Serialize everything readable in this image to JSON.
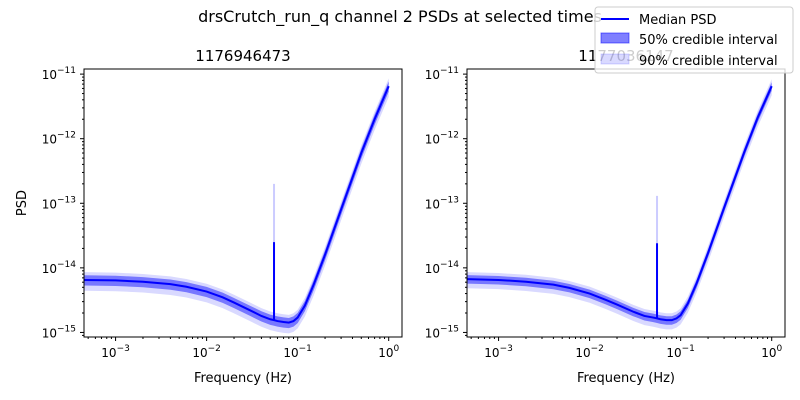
{
  "figure_title": "drsCrutch_run_q channel 2 PSDs at selected times",
  "legend": {
    "placement": "upper-right",
    "entries": [
      {
        "label": "Median PSD",
        "kind": "line",
        "color": "#0000ff"
      },
      {
        "label": "50% credible interval",
        "kind": "patch",
        "color": "#0000ff",
        "opacity": 0.5
      },
      {
        "label": "90% credible interval",
        "kind": "patch",
        "color": "#0000ff",
        "opacity": 0.15
      }
    ]
  },
  "colors": {
    "median": "#0000ff",
    "band": "#0000ff"
  },
  "chart_data": [
    {
      "type": "line",
      "title": "1176946473",
      "xlabel": "Frequency (Hz)",
      "ylabel": "PSD",
      "xscale": "log",
      "yscale": "log",
      "xlim": [
        0.00045,
        1.4
      ],
      "ylim": [
        8.5e-16,
        1.2e-11
      ],
      "xticks": [
        {
          "value": 0.001,
          "base": "10",
          "exp": "−3"
        },
        {
          "value": 0.01,
          "base": "10",
          "exp": "−2"
        },
        {
          "value": 0.1,
          "base": "10",
          "exp": "−1"
        },
        {
          "value": 1,
          "base": "10",
          "exp": "0"
        }
      ],
      "yticks": [
        {
          "value": 1e-15,
          "base": "10",
          "exp": "−15"
        },
        {
          "value": 1e-14,
          "base": "10",
          "exp": "−14"
        },
        {
          "value": 1e-13,
          "base": "10",
          "exp": "−13"
        },
        {
          "value": 1e-12,
          "base": "10",
          "exp": "−12"
        },
        {
          "value": 1e-11,
          "base": "10",
          "exp": "−11"
        }
      ],
      "grid": false,
      "series": [
        {
          "name": "Median PSD",
          "x": [
            0.00045,
            0.001,
            0.002,
            0.004,
            0.006,
            0.01,
            0.015,
            0.02,
            0.03,
            0.04,
            0.05,
            0.055,
            0.06,
            0.07,
            0.08,
            0.09,
            0.1,
            0.12,
            0.15,
            0.2,
            0.3,
            0.5,
            0.7,
            1.0
          ],
          "y": [
            6.5e-15,
            6.4e-15,
            6.1e-15,
            5.6e-15,
            5.1e-15,
            4.3e-15,
            3.5e-15,
            2.9e-15,
            2.2e-15,
            1.8e-15,
            1.6e-15,
            1.55e-15,
            1.5e-15,
            1.45e-15,
            1.42e-15,
            1.5e-15,
            1.7e-15,
            2.6e-15,
            5.5e-15,
            1.6e-14,
            8e-14,
            6e-13,
            2e-12,
            6.5e-12
          ]
        },
        {
          "name": "50% credible interval",
          "ratio_low": 0.82,
          "ratio_high": 1.18
        },
        {
          "name": "90% credible interval",
          "ratio_low": 0.68,
          "ratio_high": 1.32
        }
      ],
      "spike": {
        "x": 0.055,
        "median_peak": 2.5e-14,
        "band_peak": 2e-13
      }
    },
    {
      "type": "line",
      "title": "1177036147",
      "xlabel": "Frequency (Hz)",
      "ylabel": "",
      "xscale": "log",
      "yscale": "log",
      "xlim": [
        0.00045,
        1.4
      ],
      "ylim": [
        8.5e-16,
        1.2e-11
      ],
      "xticks": [
        {
          "value": 0.001,
          "base": "10",
          "exp": "−3"
        },
        {
          "value": 0.01,
          "base": "10",
          "exp": "−2"
        },
        {
          "value": 0.1,
          "base": "10",
          "exp": "−1"
        },
        {
          "value": 1,
          "base": "10",
          "exp": "0"
        }
      ],
      "yticks": [
        {
          "value": 1e-15,
          "base": "10",
          "exp": "−15"
        },
        {
          "value": 1e-14,
          "base": "10",
          "exp": "−14"
        },
        {
          "value": 1e-13,
          "base": "10",
          "exp": "−13"
        },
        {
          "value": 1e-12,
          "base": "10",
          "exp": "−12"
        },
        {
          "value": 1e-11,
          "base": "10",
          "exp": "−11"
        }
      ],
      "grid": false,
      "series": [
        {
          "name": "Median PSD",
          "x": [
            0.00045,
            0.001,
            0.002,
            0.004,
            0.006,
            0.01,
            0.015,
            0.02,
            0.03,
            0.04,
            0.05,
            0.055,
            0.06,
            0.07,
            0.08,
            0.09,
            0.1,
            0.12,
            0.15,
            0.2,
            0.3,
            0.5,
            0.7,
            1.0
          ],
          "y": [
            6.7e-15,
            6.5e-15,
            6.1e-15,
            5.5e-15,
            4.9e-15,
            4e-15,
            3.2e-15,
            2.7e-15,
            2.1e-15,
            1.8e-15,
            1.7e-15,
            1.65e-15,
            1.6e-15,
            1.55e-15,
            1.55e-15,
            1.65e-15,
            1.85e-15,
            2.8e-15,
            5.8e-15,
            1.7e-14,
            8.5e-14,
            6.2e-13,
            2.1e-12,
            6.5e-12
          ]
        },
        {
          "name": "50% credible interval",
          "ratio_low": 0.85,
          "ratio_high": 1.15
        },
        {
          "name": "90% credible interval",
          "ratio_low": 0.72,
          "ratio_high": 1.28
        }
      ],
      "spike": {
        "x": 0.055,
        "median_peak": 2.4e-14,
        "band_peak": 1.3e-13
      }
    }
  ]
}
